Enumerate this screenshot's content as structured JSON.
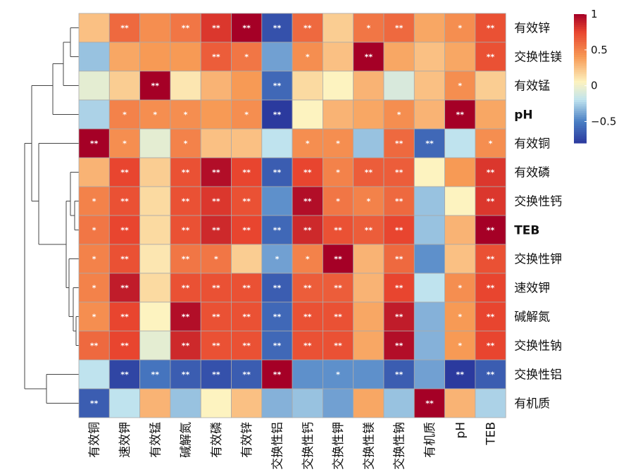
{
  "chart_data": {
    "type": "heatmap",
    "rows": [
      "有效锌",
      "交换性镁",
      "有效锰",
      "pH",
      "有效铜",
      "有效磷",
      "交换性钙",
      "TEB",
      "交换性钾",
      "速效钾",
      "碱解氮",
      "交换性钠",
      "交换性铝",
      "有机质"
    ],
    "columns": [
      "有效铜",
      "速效钾",
      "有效锰",
      "碱解氮",
      "有效磷",
      "有效锌",
      "交换性铝",
      "交换性钙",
      "交换性钾",
      "交换性镁",
      "交换性钠",
      "有机质",
      "pH",
      "TEB"
    ],
    "bold_labels": [
      "pH",
      "TEB"
    ],
    "values": [
      [
        0.25,
        0.6,
        0.45,
        0.55,
        0.8,
        1.0,
        -0.7,
        0.6,
        0.2,
        0.55,
        0.6,
        0.35,
        0.45,
        0.7
      ],
      [
        -0.3,
        0.35,
        0.4,
        0.4,
        0.65,
        0.55,
        -0.4,
        0.45,
        0.25,
        1.0,
        0.35,
        0.25,
        0.35,
        0.7
      ],
      [
        -0.05,
        0.2,
        1.0,
        0.1,
        0.3,
        0.4,
        -0.6,
        0.15,
        0.05,
        0.3,
        -0.1,
        0.25,
        0.45,
        0.2
      ],
      [
        -0.25,
        0.5,
        0.45,
        0.45,
        0.4,
        0.45,
        -0.9,
        0.05,
        0.3,
        0.35,
        0.45,
        0.3,
        1.0,
        0.35
      ],
      [
        1.0,
        0.45,
        -0.05,
        0.5,
        0.25,
        0.25,
        -0.2,
        0.45,
        0.45,
        -0.3,
        0.6,
        -0.6,
        -0.2,
        0.45
      ],
      [
        0.3,
        0.75,
        0.2,
        0.7,
        0.95,
        0.75,
        -0.65,
        0.75,
        0.5,
        0.65,
        0.65,
        0.05,
        0.4,
        0.8
      ],
      [
        0.5,
        0.7,
        0.15,
        0.7,
        0.8,
        0.7,
        -0.45,
        0.95,
        0.55,
        0.5,
        0.6,
        -0.3,
        0.05,
        0.8
      ],
      [
        0.55,
        0.75,
        0.15,
        0.7,
        0.85,
        0.75,
        -0.6,
        0.85,
        0.7,
        0.65,
        0.75,
        -0.3,
        0.3,
        1.0
      ],
      [
        0.5,
        0.7,
        0.1,
        0.55,
        0.55,
        0.2,
        -0.4,
        0.5,
        1.0,
        0.3,
        0.6,
        -0.45,
        0.25,
        0.7
      ],
      [
        0.5,
        0.9,
        0.15,
        0.7,
        0.7,
        0.7,
        -0.65,
        0.65,
        0.65,
        0.3,
        0.75,
        -0.2,
        0.45,
        0.75
      ],
      [
        0.45,
        0.75,
        0.05,
        0.95,
        0.7,
        0.7,
        -0.6,
        0.7,
        0.7,
        0.35,
        0.9,
        -0.35,
        0.4,
        0.75
      ],
      [
        0.6,
        0.75,
        -0.05,
        0.85,
        0.7,
        0.7,
        -0.6,
        0.7,
        0.7,
        0.35,
        0.95,
        -0.35,
        0.4,
        0.75
      ],
      [
        -0.2,
        -0.75,
        -0.55,
        -0.65,
        -0.7,
        -0.65,
        1.0,
        -0.45,
        -0.45,
        -0.45,
        -0.65,
        -0.4,
        -0.85,
        -0.65
      ],
      [
        -0.65,
        -0.2,
        0.3,
        -0.3,
        0.05,
        0.25,
        -0.35,
        -0.3,
        -0.4,
        0.35,
        -0.3,
        1.0,
        0.3,
        -0.25
      ]
    ],
    "significance": [
      [
        "",
        "**",
        "",
        "**",
        "**",
        "**",
        "**",
        "**",
        "",
        "*",
        "**",
        "",
        "*",
        "**"
      ],
      [
        "",
        "",
        "",
        "",
        "**",
        "*",
        "",
        "*",
        "",
        "**",
        "",
        "",
        "",
        "**"
      ],
      [
        "",
        "",
        "**",
        "",
        "",
        "",
        "**",
        "",
        "",
        "",
        "",
        "",
        "*",
        ""
      ],
      [
        "",
        "*",
        "*",
        "*",
        "",
        "*",
        "**",
        "",
        "",
        "",
        "*",
        "",
        "**",
        ""
      ],
      [
        "**",
        "*",
        "",
        "*",
        "",
        "",
        "",
        "*",
        "*",
        "",
        "**",
        "**",
        "",
        "*"
      ],
      [
        "",
        "**",
        "",
        "**",
        "**",
        "**",
        "**",
        "**",
        "*",
        "**",
        "**",
        "",
        "",
        "**"
      ],
      [
        "*",
        "**",
        "",
        "**",
        "**",
        "**",
        "",
        "**",
        "*",
        "*",
        "**",
        "",
        "",
        "**"
      ],
      [
        "*",
        "**",
        "",
        "**",
        "**",
        "**",
        "**",
        "**",
        "**",
        "**",
        "**",
        "",
        "",
        "**"
      ],
      [
        "*",
        "**",
        "",
        "**",
        "*",
        "",
        "*",
        "*",
        "**",
        "",
        "**",
        "",
        "",
        "**"
      ],
      [
        "*",
        "**",
        "",
        "**",
        "**",
        "**",
        "**",
        "**",
        "**",
        "",
        "**",
        "",
        "*",
        "**"
      ],
      [
        "*",
        "**",
        "",
        "**",
        "**",
        "**",
        "**",
        "**",
        "**",
        "",
        "**",
        "",
        "*",
        "**"
      ],
      [
        "**",
        "**",
        "",
        "**",
        "**",
        "**",
        "**",
        "**",
        "**",
        "",
        "**",
        "",
        "*",
        "**"
      ],
      [
        "",
        "**",
        "**",
        "**",
        "**",
        "**",
        "**",
        "",
        "*",
        "",
        "**",
        "",
        "**",
        "**"
      ],
      [
        "**",
        "",
        "",
        "",
        "",
        "",
        "",
        "",
        "",
        "",
        "",
        "**",
        "",
        ""
      ]
    ],
    "colorbar": {
      "min": -0.8,
      "max": 1,
      "ticks": [
        1,
        0.5,
        0,
        -0.5
      ],
      "tick_labels": [
        "1",
        "0.5",
        "0",
        "−0.5"
      ]
    },
    "colors": {
      "low": "#2b3a9e",
      "low_mid": "#4a7fc4",
      "light_blue": "#bfe3ee",
      "mid": "#fdf3c0",
      "orange": "#f79a55",
      "high_mid": "#e8452f",
      "high": "#a50026",
      "grid": "#aaaaaa"
    },
    "dendrogram": "left-rows"
  }
}
